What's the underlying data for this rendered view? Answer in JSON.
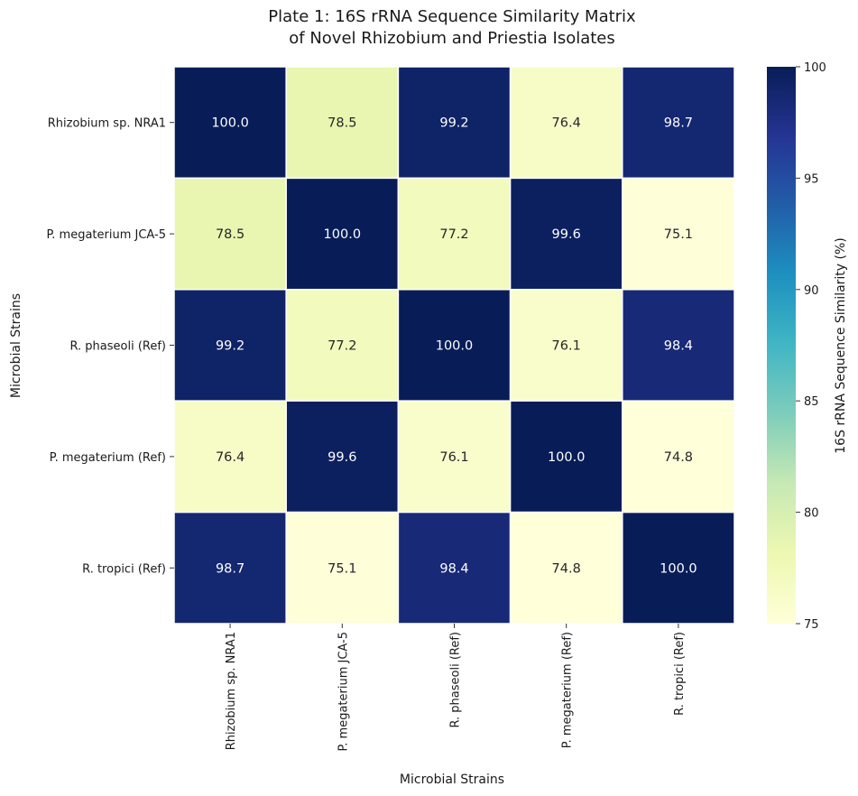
{
  "chart_data": {
    "type": "heatmap",
    "title": "Plate 1: 16S rRNA Sequence Similarity Matrix\nof Novel Rhizobium and Priestia Isolates",
    "title_lines": [
      "Plate 1: 16S rRNA Sequence Similarity Matrix",
      "of Novel Rhizobium and Priestia Isolates"
    ],
    "xlabel": "Microbial Strains",
    "ylabel": "Microbial Strains",
    "x_categories": [
      "Rhizobium sp. NRA1",
      "P. megaterium JCA-5",
      "R. phaseoli (Ref)",
      "P. megaterium (Ref)",
      "R. tropici (Ref)"
    ],
    "y_categories": [
      "Rhizobium sp. NRA1",
      "P. megaterium JCA-5",
      "R. phaseoli (Ref)",
      "P. megaterium (Ref)",
      "R. tropici (Ref)"
    ],
    "values": [
      [
        100.0,
        78.5,
        99.2,
        76.4,
        98.7
      ],
      [
        78.5,
        100.0,
        77.2,
        99.6,
        75.1
      ],
      [
        99.2,
        77.2,
        100.0,
        76.1,
        98.4
      ],
      [
        76.4,
        99.6,
        76.1,
        100.0,
        74.8
      ],
      [
        98.7,
        75.1,
        98.4,
        74.8,
        100.0
      ]
    ],
    "annotation_format": "0.1f",
    "colormap": "YlGnBu",
    "colorbar": {
      "label": "16S rRNA Sequence Similarity (%)",
      "vmin": 75,
      "vmax": 100,
      "ticks": [
        75,
        80,
        85,
        90,
        95,
        100
      ],
      "position": "right"
    },
    "grid": false,
    "colormap_stops": [
      "#ffffd9",
      "#edf8b1",
      "#c7e9b4",
      "#7fcdbb",
      "#41b6c4",
      "#1d91c0",
      "#225ea8",
      "#253494",
      "#081d58"
    ]
  }
}
